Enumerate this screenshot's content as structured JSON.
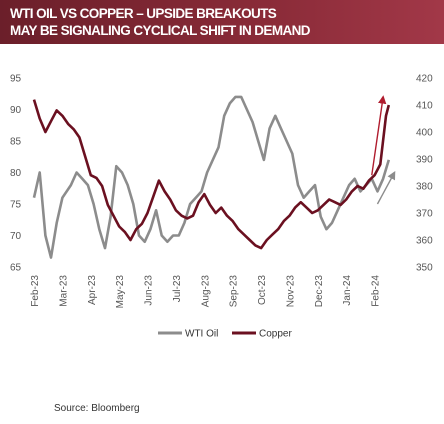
{
  "header": {
    "title_line1": "WTI OIL VS COPPER – UPSIDE BREAKOUTS",
    "title_line2": "MAY BE SIGNALING CYCLICAL SHIFT IN DEMAND"
  },
  "source": "Source:  Bloomberg",
  "colors": {
    "banner": "#7a2432",
    "oil": "#8c8c8c",
    "copper": "#6b1020",
    "arrow": "#b01c2e",
    "arrow_oil": "#8c8c8c"
  },
  "chart_data": {
    "type": "line",
    "title": "",
    "xlabel": "",
    "ylabel": "",
    "grid": false,
    "legend": "bottom-center",
    "x_tick_labels": [
      "Feb-23",
      "Mar-23",
      "Apr-23",
      "May-23",
      "Jun-23",
      "Jul-23",
      "Aug-23",
      "Sep-23",
      "Oct-23",
      "Nov-23",
      "Dec-23",
      "Jan-24",
      "Feb-24"
    ],
    "x_range": [
      0,
      13
    ],
    "y_left": {
      "ticks": [
        65,
        70,
        75,
        80,
        85,
        90,
        95
      ],
      "range": [
        65,
        95
      ]
    },
    "y_right": {
      "ticks": [
        350,
        360,
        370,
        380,
        390,
        400,
        410,
        420
      ],
      "range": [
        350,
        420
      ]
    },
    "series": [
      {
        "name": "WTI Oil",
        "axis": "left",
        "x": [
          0,
          0.2,
          0.4,
          0.6,
          0.8,
          1.0,
          1.3,
          1.5,
          1.7,
          1.9,
          2.1,
          2.3,
          2.5,
          2.7,
          2.9,
          3.1,
          3.3,
          3.5,
          3.7,
          3.9,
          4.1,
          4.3,
          4.5,
          4.7,
          4.9,
          5.1,
          5.3,
          5.5,
          5.7,
          5.9,
          6.1,
          6.3,
          6.5,
          6.7,
          6.9,
          7.1,
          7.3,
          7.5,
          7.7,
          7.9,
          8.1,
          8.3,
          8.5,
          8.7,
          8.9,
          9.1,
          9.3,
          9.5,
          9.7,
          9.9,
          10.1,
          10.3,
          10.5,
          10.7,
          10.9,
          11.1,
          11.3,
          11.5,
          11.7,
          11.9,
          12.1,
          12.3,
          12.5
        ],
        "values": [
          76,
          80,
          70,
          66.5,
          72,
          76,
          78,
          80,
          79,
          78,
          75,
          71,
          68,
          73,
          81,
          80,
          78,
          75,
          70,
          69,
          71,
          74,
          70,
          69,
          70,
          70,
          72,
          75,
          76,
          77,
          80,
          82,
          84,
          89,
          91,
          92,
          92,
          90,
          88,
          85,
          82,
          87,
          89,
          87,
          85,
          83,
          78,
          76,
          77,
          78,
          73,
          71,
          72,
          74,
          76,
          78,
          79,
          77,
          78,
          79,
          77,
          79,
          82
        ]
      },
      {
        "name": "Copper",
        "axis": "right",
        "x": [
          0,
          0.2,
          0.4,
          0.6,
          0.8,
          1.0,
          1.2,
          1.4,
          1.6,
          1.8,
          2.0,
          2.2,
          2.4,
          2.6,
          2.8,
          3.0,
          3.2,
          3.4,
          3.6,
          3.8,
          4.0,
          4.2,
          4.4,
          4.6,
          4.8,
          5.0,
          5.2,
          5.4,
          5.6,
          5.8,
          6.0,
          6.2,
          6.4,
          6.6,
          6.8,
          7.0,
          7.2,
          7.4,
          7.6,
          7.8,
          8.0,
          8.2,
          8.4,
          8.6,
          8.8,
          9.0,
          9.2,
          9.4,
          9.6,
          9.8,
          10.0,
          10.2,
          10.4,
          10.6,
          10.8,
          11.0,
          11.2,
          11.4,
          11.6,
          11.8,
          12.0,
          12.2,
          12.4,
          12.5
        ],
        "values": [
          412,
          405,
          400,
          404,
          408,
          406,
          403,
          401,
          398,
          391,
          384,
          383,
          380,
          373,
          369,
          365,
          363,
          360,
          364,
          366,
          370,
          376,
          382,
          378,
          375,
          371,
          369,
          368,
          369,
          374,
          377,
          373,
          370,
          372,
          369,
          367,
          364,
          362,
          360,
          358,
          357,
          360,
          362,
          364,
          367,
          369,
          372,
          374,
          372,
          370,
          371,
          373,
          375,
          374,
          373,
          375,
          378,
          380,
          379,
          382,
          384,
          388,
          406,
          410
        ]
      }
    ],
    "annotations": [
      {
        "type": "arrow",
        "series": "Copper",
        "from": [
          11.9,
          384
        ],
        "to": [
          12.3,
          413
        ]
      },
      {
        "type": "arrow",
        "series": "WTI Oil",
        "from": [
          12.1,
          75
        ],
        "to": [
          12.7,
          80
        ]
      }
    ]
  }
}
